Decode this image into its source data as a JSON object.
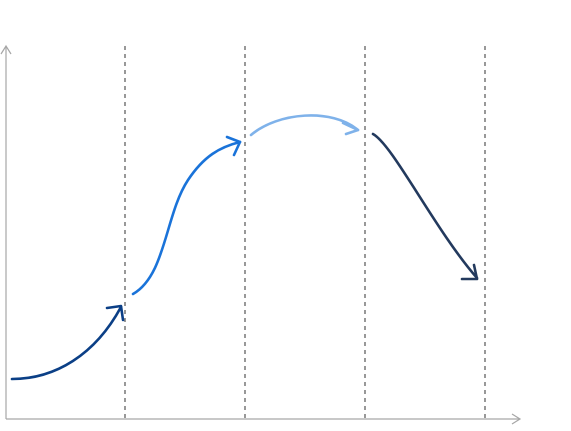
{
  "diagram": {
    "type": "stage-curve",
    "axes": {
      "x_arrow": true,
      "y_arrow": true,
      "axis_color": "#a6a6a6"
    },
    "divider_style": "dashed",
    "divider_color": "#555555",
    "stages": [
      {
        "segment": "rise-start",
        "trend": "up",
        "color": "#0b3f86"
      },
      {
        "segment": "steep-growth",
        "trend": "up",
        "color": "#1a73d9"
      },
      {
        "segment": "plateau-arc",
        "trend": "flat",
        "color": "#7fb2ea"
      },
      {
        "segment": "decline",
        "trend": "down",
        "color": "#233a5e"
      }
    ]
  }
}
